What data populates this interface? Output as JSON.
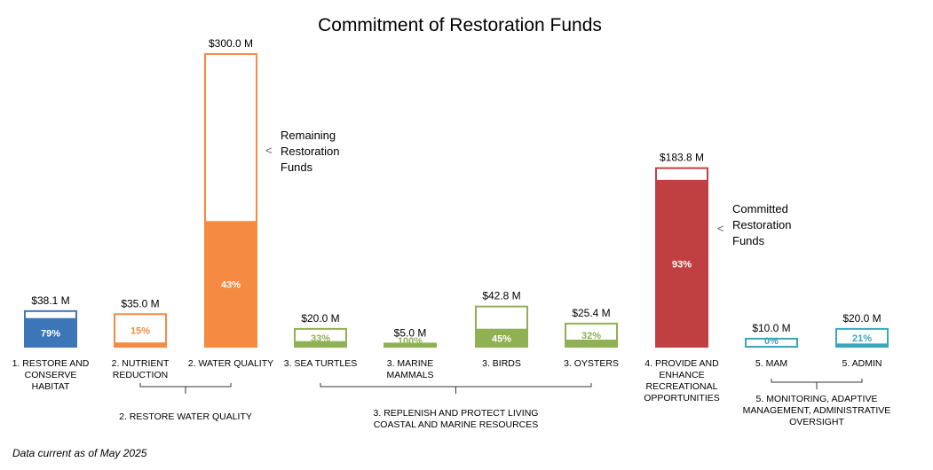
{
  "chart_data": {
    "type": "bar",
    "title": "Commitment of Restoration Funds",
    "xlabel": "",
    "ylabel": "",
    "ylim": [
      0,
      300
    ],
    "grid": false,
    "legend": "none",
    "unit": "$ M",
    "categories": [
      "1. RESTORE AND CONSERVE HABITAT",
      "2. NUTRIENT REDUCTION",
      "2. WATER QUALITY",
      "3. SEA TURTLES",
      "3. MARINE MAMMALS",
      "3. BIRDS",
      "3. OYSTERS",
      "4. PROVIDE AND ENHANCE RECREATIONAL OPPORTUNITIES",
      "5. MAM",
      "5. ADMIN"
    ],
    "category_lines": [
      [
        "1. RESTORE AND",
        "CONSERVE",
        "HABITAT"
      ],
      [
        "2. NUTRIENT",
        "REDUCTION"
      ],
      [
        "2. WATER QUALITY"
      ],
      [
        "3. SEA TURTLES"
      ],
      [
        "3. MARINE",
        "MAMMALS"
      ],
      [
        "3. BIRDS"
      ],
      [
        "3. OYSTERS"
      ],
      [
        "4. PROVIDE AND",
        "ENHANCE",
        "RECREATIONAL",
        "OPPORTUNITIES"
      ],
      [
        "5. MAM"
      ],
      [
        "5. ADMIN"
      ]
    ],
    "totals": [
      38.1,
      35.0,
      300.0,
      20.0,
      5.0,
      42.8,
      25.4,
      183.8,
      10.0,
      20.0
    ],
    "total_labels": [
      "$38.1 M",
      "$35.0 M",
      "$300.0 M",
      "$20.0 M",
      "$5.0 M",
      "$42.8 M",
      "$25.4 M",
      "$183.8 M",
      "$10.0 M",
      "$20.0 M"
    ],
    "committed_percent": [
      79,
      15,
      43,
      33,
      100,
      45,
      32,
      93,
      0,
      21
    ],
    "percent_labels": [
      "79%",
      "15%",
      "43%",
      "33%",
      "100%",
      "45%",
      "32%",
      "93%",
      "0%",
      "21%"
    ],
    "colors": [
      "#3d76b8",
      "#f58a42",
      "#f58a42",
      "#8fb053",
      "#8fb053",
      "#8fb053",
      "#8fb053",
      "#c04041",
      "#3aa6bd",
      "#3aa6bd"
    ],
    "groups": [
      {
        "lines": [
          "2. RESTORE WATER QUALITY"
        ],
        "from": 1,
        "to": 2
      },
      {
        "lines": [
          "3. REPLENISH AND PROTECT LIVING",
          "COASTAL AND MARINE RESOURCES"
        ],
        "from": 3,
        "to": 6
      },
      {
        "lines": [
          "5. MONITORING, ADAPTIVE",
          "MANAGEMENT, ADMINISTRATIVE",
          "OVERSIGHT"
        ],
        "from": 8,
        "to": 9
      }
    ],
    "annotations": [
      {
        "lines": [
          "Remaining",
          "Restoration",
          "Funds"
        ],
        "marker": "<",
        "bar": 2
      },
      {
        "lines": [
          "Committed",
          "Restoration",
          "Funds"
        ],
        "marker": "<",
        "bar": 7
      }
    ]
  },
  "footnote": "Data current as of May 2025"
}
